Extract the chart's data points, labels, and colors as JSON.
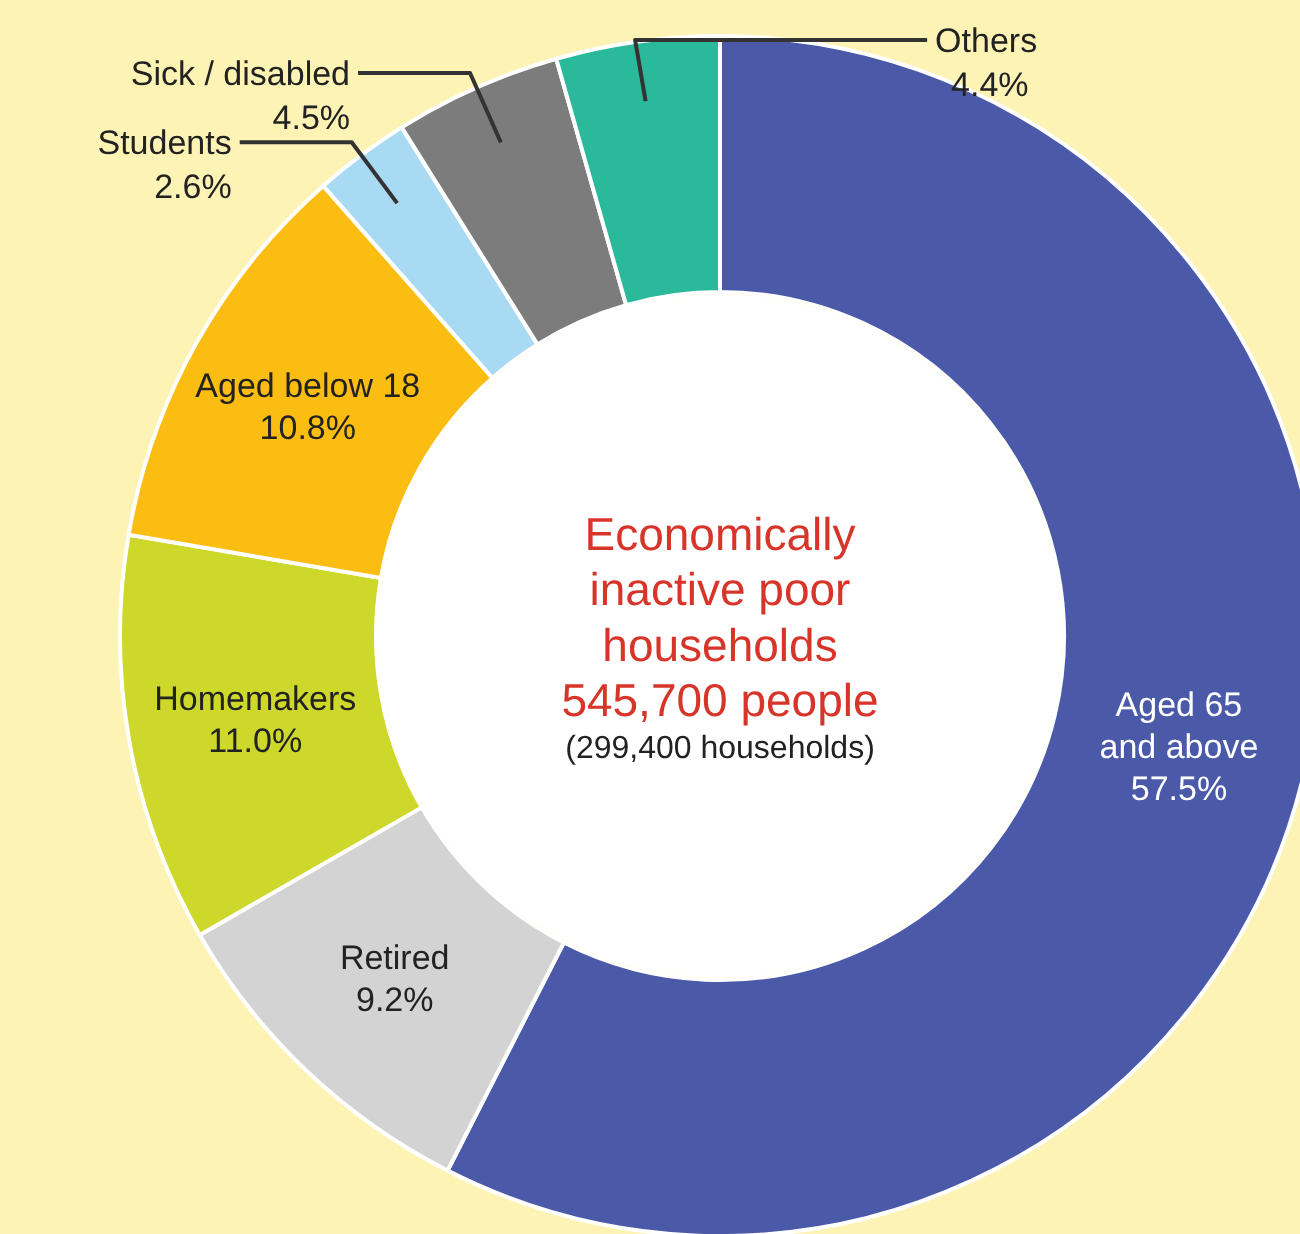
{
  "chart_data": {
    "type": "donut",
    "title": "Economically inactive poor households",
    "subtitle": "545,700 people",
    "annotations": [
      "(299,400 households)"
    ],
    "categories": [
      "Aged 65 and above",
      "Retired",
      "Homemakers",
      "Aged below 18",
      "Students",
      "Sick / disabled",
      "Others"
    ],
    "values": [
      57.5,
      9.2,
      11.0,
      10.8,
      2.6,
      4.5,
      4.4
    ],
    "colors": [
      "#4a5aa8",
      "#d3d3d3",
      "#cdd82b",
      "#fbbd12",
      "#a9daf4",
      "#7c7c7c",
      "#2bb99b"
    ],
    "value_labels": [
      "57.5%",
      "9.2%",
      "11.0%",
      "10.8%",
      "2.6%",
      "4.5%",
      "4.4%"
    ]
  }
}
